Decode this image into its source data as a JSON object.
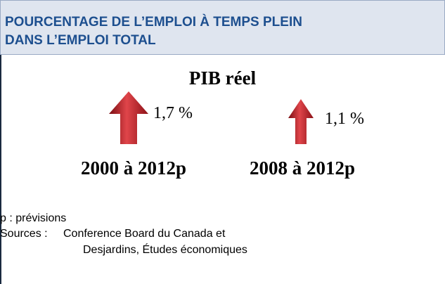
{
  "header": {
    "title_lines": [
      "POURCENTAGE DE L’EMPLOI À TEMPS PLEIN",
      "DANS L’EMPLOI TOTAL"
    ]
  },
  "subtitle": "PIB réel",
  "items": [
    {
      "value": "1,7 %",
      "period": "2000 à 2012p"
    },
    {
      "value": "1,1 %",
      "period": "2008 à 2012p"
    }
  ],
  "notes": {
    "legend": "p : prévisions",
    "sources_label": "Sources :",
    "sources_lines": [
      "Conference Board du Canada et",
      "Desjardins, Études économiques"
    ]
  }
}
